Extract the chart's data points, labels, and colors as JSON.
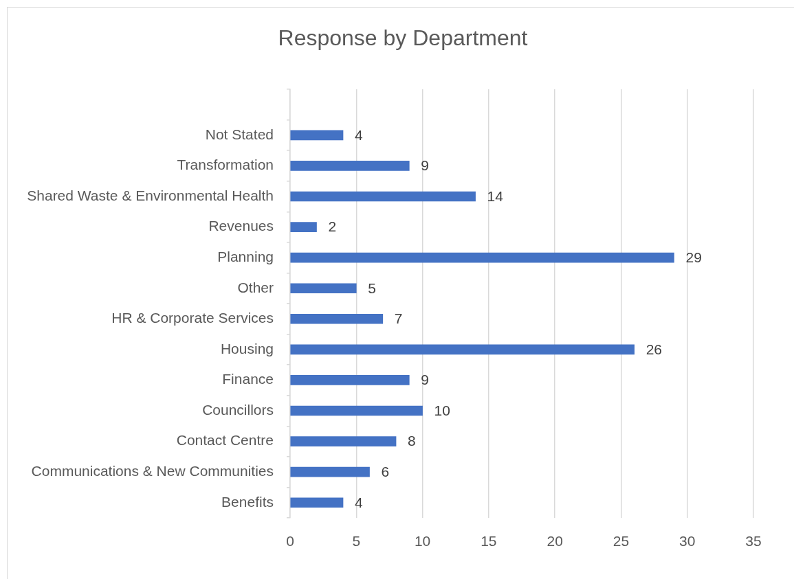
{
  "chart_data": {
    "type": "bar",
    "orientation": "horizontal",
    "title": "Response by Department",
    "categories": [
      null,
      "Not Stated",
      "Transformation",
      "Shared Waste & Environmental Health",
      "Revenues",
      "Planning",
      "Other",
      "HR & Corporate Services",
      "Housing",
      "Finance",
      "Councillors",
      "Contact Centre",
      "Communications & New Communities",
      "Benefits"
    ],
    "values": [
      null,
      4,
      9,
      14,
      2,
      29,
      5,
      7,
      26,
      9,
      10,
      8,
      6,
      4
    ],
    "color": "#4472c4",
    "xlim": [
      0,
      35
    ],
    "xticks": [
      0,
      5,
      10,
      15,
      20,
      25,
      30,
      35
    ],
    "grid": "x",
    "data_labels": true
  }
}
